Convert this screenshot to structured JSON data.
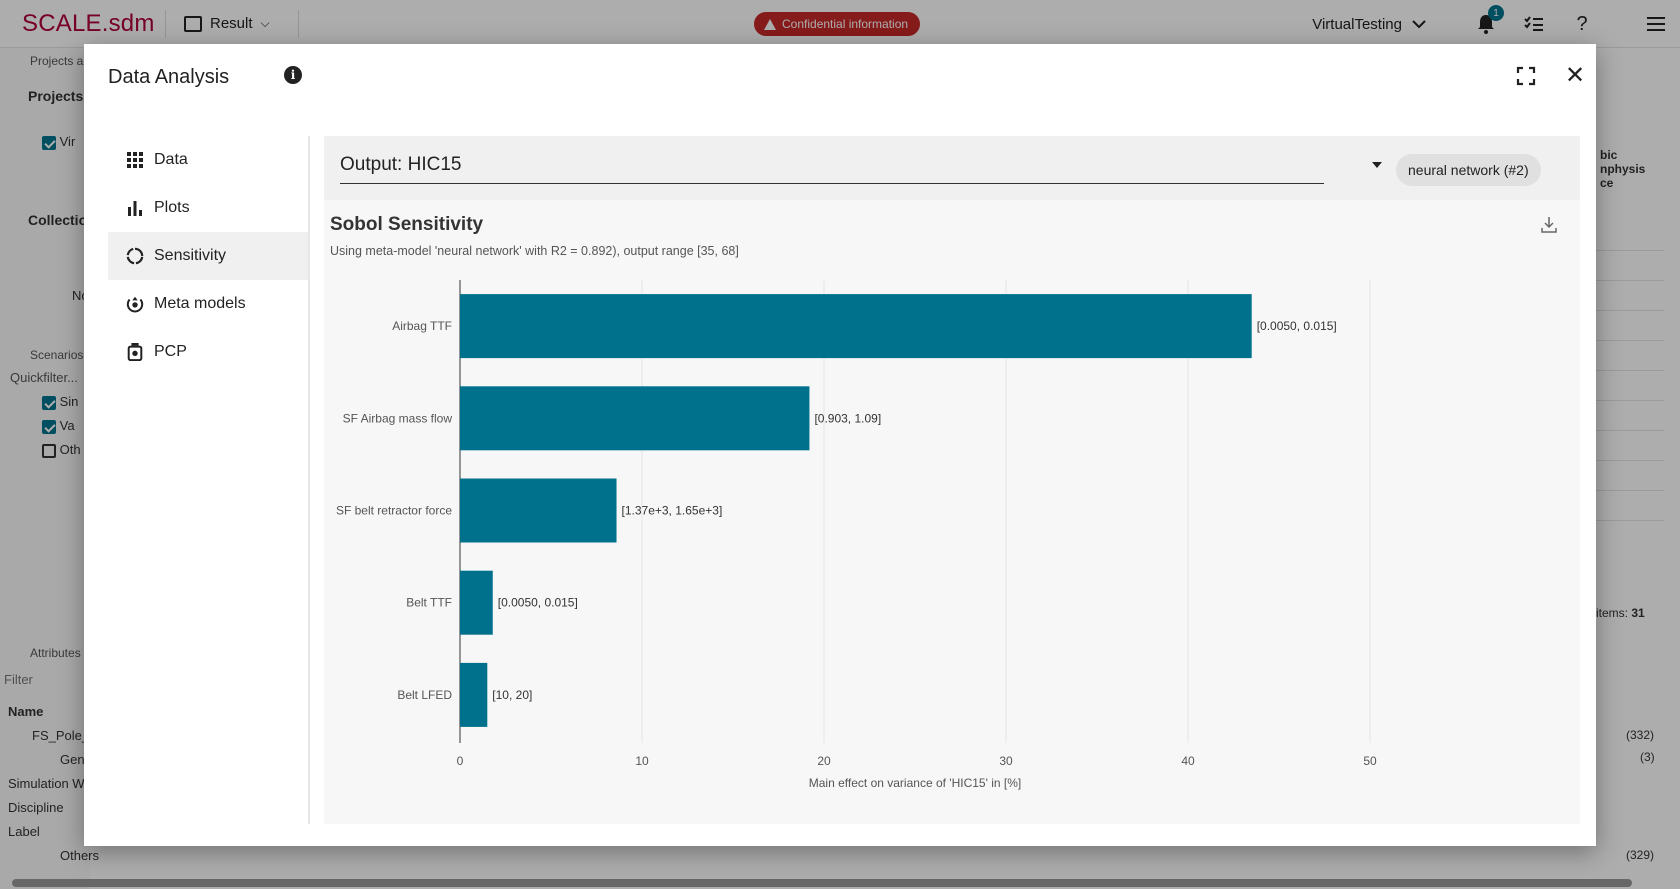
{
  "app": {
    "brand": "SCALE.sdm",
    "result_label": "Result",
    "confidential": "Confidential information",
    "workspace": "VirtualTesting",
    "notification_count": "1"
  },
  "background": {
    "projects_tab": "Projects a",
    "projects_header": "Projects",
    "project_item": "Vir",
    "collections_header": "Collectio",
    "no_label": "No",
    "scenarios_tab": "Scenarios",
    "quickfilter": "Quickfilter...",
    "filters": [
      {
        "label": "Sin",
        "checked": true
      },
      {
        "label": "Va",
        "checked": true
      },
      {
        "label": "Oth",
        "checked": false
      }
    ],
    "attributes_tab": "Attributes",
    "filter_placeholder": "Filter",
    "name_header": "Name",
    "tree": [
      "FS_Pole_",
      "Gen",
      "Simulation Wa",
      "Discipline",
      "Label",
      "Others"
    ],
    "right_header": "bic\nnphysis\nce",
    "items_label": "items:",
    "items_count": "31",
    "count_332": "(332)",
    "count_3": "(3)",
    "count_329": "(329)"
  },
  "modal": {
    "title": "Data Analysis",
    "nav": [
      {
        "label": "Data",
        "icon": "grid-icon",
        "active": false
      },
      {
        "label": "Plots",
        "icon": "bar-chart-icon",
        "active": false
      },
      {
        "label": "Sensitivity",
        "icon": "circle-dots-icon",
        "active": true
      },
      {
        "label": "Meta models",
        "icon": "meta-model-icon",
        "active": false
      },
      {
        "label": "PCP",
        "icon": "pcp-icon",
        "active": false
      }
    ],
    "output_label": "Output: HIC15",
    "model_chip": "neural network (#2)",
    "chart_title": "Sobol Sensitivity",
    "chart_subtitle": "Using meta-model 'neural network' with R2 = 0.892), output range [35, 68]"
  },
  "chart_data": {
    "type": "bar",
    "orientation": "horizontal",
    "title": "Sobol Sensitivity",
    "subtitle": "Using meta-model 'neural network' with R2 = 0.892), output range [35, 68]",
    "xlabel": "Main effect on variance of 'HIC15' in [%]",
    "ylabel": "",
    "xlim": [
      0,
      55
    ],
    "xticks": [
      "0",
      "10",
      "20",
      "30",
      "40",
      "50"
    ],
    "grid": true,
    "color": "#00718c",
    "categories": [
      "Airbag TTF",
      "SF Airbag mass flow",
      "SF belt retractor force",
      "Belt TTF",
      "Belt LFED"
    ],
    "values": [
      43.5,
      19.2,
      8.6,
      1.8,
      1.5
    ],
    "bar_labels": [
      "[0.0050, 0.015]",
      "[0.903, 1.09]",
      "[1.37e+3, 1.65e+3]",
      "[0.0050, 0.015]",
      "[10, 20]"
    ]
  }
}
